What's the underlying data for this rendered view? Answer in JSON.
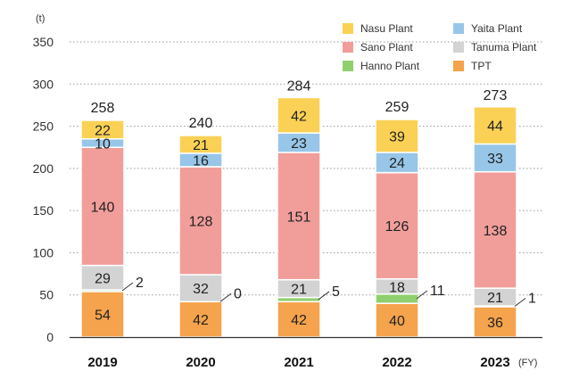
{
  "chart_data": {
    "type": "bar",
    "stacked": true,
    "unit_label": "(t)",
    "x_suffix": "(FY)",
    "categories": [
      "2019",
      "2020",
      "2021",
      "2022",
      "2023"
    ],
    "ylim": [
      0,
      350
    ],
    "yticks": [
      0,
      50,
      100,
      150,
      200,
      250,
      300,
      350
    ],
    "grid": "dotted horizontal",
    "legend_position": "top-right",
    "series": [
      {
        "name": "TPT",
        "color": "#f5a34c",
        "values": [
          54,
          42,
          42,
          40,
          36
        ]
      },
      {
        "name": "Hanno Plant",
        "color": "#8fcf6e",
        "values": [
          2,
          0,
          5,
          11,
          1
        ]
      },
      {
        "name": "Tanuma Plant",
        "color": "#d3d3d3",
        "values": [
          29,
          32,
          21,
          18,
          21
        ]
      },
      {
        "name": "Sano Plant",
        "color": "#f19e9a",
        "values": [
          140,
          128,
          151,
          126,
          138
        ]
      },
      {
        "name": "Yaita Plant",
        "color": "#97c6e8",
        "values": [
          10,
          16,
          23,
          24,
          33
        ]
      },
      {
        "name": "Nasu Plant",
        "color": "#fbd155",
        "values": [
          22,
          21,
          42,
          39,
          44
        ]
      }
    ],
    "totals": [
      258,
      240,
      284,
      259,
      273
    ],
    "legend_order": [
      "Nasu Plant",
      "Yaita Plant",
      "Sano Plant",
      "Tanuma Plant",
      "Hanno Plant",
      "TPT"
    ]
  }
}
